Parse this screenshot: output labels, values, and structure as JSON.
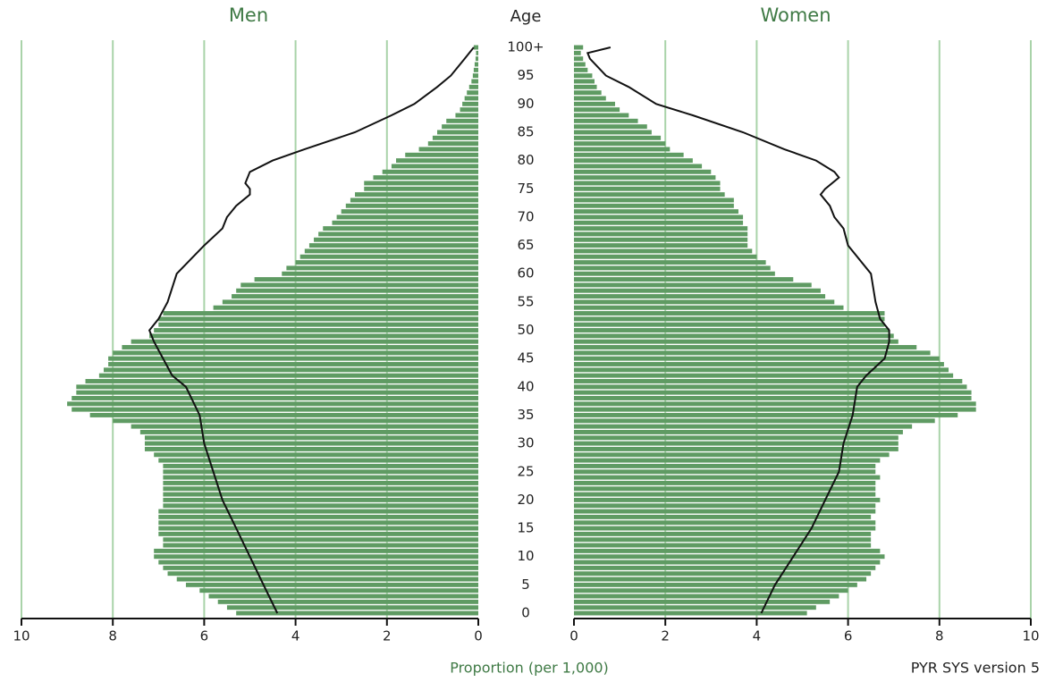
{
  "chart_data": {
    "type": "pyramid",
    "age_label": "Age",
    "xlabel": "Proportion (per 1,000)",
    "note": "PYR SYS version 5",
    "xlim": [
      0,
      10
    ],
    "xticks": [
      0,
      2,
      4,
      6,
      8,
      10
    ],
    "ylim": [
      0,
      100
    ],
    "yticks": [
      0,
      5,
      10,
      15,
      20,
      25,
      30,
      35,
      40,
      45,
      50,
      55,
      60,
      65,
      70,
      75,
      80,
      85,
      90,
      95,
      {
        "value": 100,
        "label": "100+"
      }
    ],
    "grid": true,
    "ages": [
      0,
      1,
      2,
      3,
      4,
      5,
      6,
      7,
      8,
      9,
      10,
      11,
      12,
      13,
      14,
      15,
      16,
      17,
      18,
      19,
      20,
      21,
      22,
      23,
      24,
      25,
      26,
      27,
      28,
      29,
      30,
      31,
      32,
      33,
      34,
      35,
      36,
      37,
      38,
      39,
      40,
      41,
      42,
      43,
      44,
      45,
      46,
      47,
      48,
      49,
      50,
      51,
      52,
      53,
      54,
      55,
      56,
      57,
      58,
      59,
      60,
      61,
      62,
      63,
      64,
      65,
      66,
      67,
      68,
      69,
      70,
      71,
      72,
      73,
      74,
      75,
      76,
      77,
      78,
      79,
      80,
      81,
      82,
      83,
      84,
      85,
      86,
      87,
      88,
      89,
      90,
      91,
      92,
      93,
      94,
      95,
      96,
      97,
      98,
      99,
      100
    ],
    "series": [
      {
        "name": "Men",
        "side": "left",
        "color": "#5f9b63",
        "values": [
          5.3,
          5.5,
          5.7,
          5.9,
          6.1,
          6.4,
          6.6,
          6.8,
          6.9,
          7.0,
          7.1,
          7.1,
          6.9,
          6.9,
          7.0,
          7.0,
          7.0,
          7.0,
          7.0,
          6.9,
          6.9,
          6.9,
          6.9,
          6.9,
          6.9,
          6.9,
          6.9,
          7.0,
          7.1,
          7.3,
          7.3,
          7.3,
          7.4,
          7.6,
          8.0,
          8.5,
          8.9,
          9.0,
          8.9,
          8.8,
          8.8,
          8.6,
          8.3,
          8.2,
          8.1,
          8.1,
          8.0,
          7.8,
          7.6,
          7.2,
          7.1,
          7.0,
          7.0,
          6.9,
          5.8,
          5.6,
          5.4,
          5.3,
          5.2,
          4.9,
          4.3,
          4.2,
          4.0,
          3.9,
          3.8,
          3.7,
          3.6,
          3.5,
          3.4,
          3.2,
          3.1,
          3.0,
          2.9,
          2.8,
          2.7,
          2.5,
          2.5,
          2.3,
          2.1,
          1.9,
          1.8,
          1.6,
          1.3,
          1.1,
          1.0,
          0.9,
          0.8,
          0.7,
          0.5,
          0.4,
          0.35,
          0.3,
          0.25,
          0.2,
          0.15,
          0.12,
          0.1,
          0.08,
          0.06,
          0.05,
          0.1
        ],
        "comparison": {
          "color": "#111111",
          "ages": [
            0,
            5,
            10,
            15,
            20,
            25,
            30,
            35,
            40,
            42,
            45,
            48,
            50,
            52,
            55,
            60,
            65,
            68,
            70,
            72,
            74,
            75,
            76,
            78,
            80,
            82,
            85,
            88,
            90,
            93,
            95,
            98,
            100
          ],
          "values": [
            4.4,
            4.7,
            5.0,
            5.3,
            5.6,
            5.8,
            6.0,
            6.1,
            6.4,
            6.7,
            6.9,
            7.1,
            7.2,
            7.0,
            6.8,
            6.6,
            6.0,
            5.6,
            5.5,
            5.3,
            5.0,
            5.0,
            5.1,
            5.0,
            4.5,
            3.8,
            2.7,
            1.9,
            1.4,
            0.9,
            0.6,
            0.3,
            0.1
          ]
        }
      },
      {
        "name": "Women",
        "side": "right",
        "color": "#5f9b63",
        "values": [
          5.1,
          5.3,
          5.6,
          5.8,
          6.0,
          6.2,
          6.4,
          6.5,
          6.6,
          6.7,
          6.8,
          6.7,
          6.5,
          6.5,
          6.5,
          6.6,
          6.6,
          6.5,
          6.6,
          6.6,
          6.7,
          6.6,
          6.6,
          6.6,
          6.7,
          6.6,
          6.6,
          6.7,
          6.9,
          7.1,
          7.1,
          7.1,
          7.2,
          7.4,
          7.9,
          8.4,
          8.8,
          8.8,
          8.7,
          8.7,
          8.6,
          8.5,
          8.3,
          8.2,
          8.1,
          8.0,
          7.8,
          7.5,
          7.1,
          7.0,
          6.9,
          6.8,
          6.8,
          6.8,
          5.9,
          5.7,
          5.5,
          5.4,
          5.2,
          4.8,
          4.4,
          4.3,
          4.2,
          4.0,
          3.9,
          3.8,
          3.8,
          3.8,
          3.8,
          3.7,
          3.7,
          3.6,
          3.5,
          3.5,
          3.3,
          3.2,
          3.2,
          3.1,
          3.0,
          2.8,
          2.6,
          2.4,
          2.1,
          2.0,
          1.9,
          1.7,
          1.6,
          1.4,
          1.2,
          1.0,
          0.9,
          0.7,
          0.6,
          0.5,
          0.45,
          0.4,
          0.3,
          0.25,
          0.2,
          0.15,
          0.2
        ],
        "comparison": {
          "color": "#111111",
          "ages": [
            0,
            5,
            10,
            15,
            20,
            25,
            30,
            35,
            40,
            42,
            45,
            48,
            50,
            52,
            55,
            60,
            65,
            68,
            70,
            72,
            74,
            75,
            77,
            78,
            80,
            82,
            85,
            88,
            90,
            93,
            95,
            98,
            99,
            100
          ],
          "values": [
            4.1,
            4.4,
            4.8,
            5.2,
            5.5,
            5.8,
            5.9,
            6.1,
            6.2,
            6.4,
            6.8,
            6.9,
            6.9,
            6.7,
            6.6,
            6.5,
            6.0,
            5.9,
            5.7,
            5.6,
            5.4,
            5.5,
            5.8,
            5.7,
            5.3,
            4.6,
            3.7,
            2.6,
            1.8,
            1.2,
            0.7,
            0.35,
            0.3,
            0.8
          ]
        }
      }
    ]
  }
}
